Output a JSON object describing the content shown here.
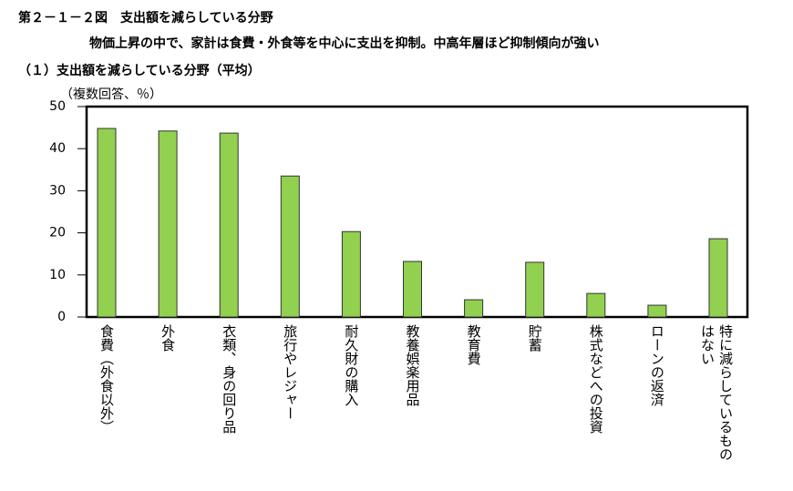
{
  "chart_data": {
    "type": "bar",
    "title": "第２－１－２図　支出額を減らしている分野",
    "subtitle": "物価上昇の中で、家計は食費・外食等を中心に支出を抑制。中高年層ほど抑制傾向が強い",
    "panel_title": "（１）支出額を減らしている分野（平均）",
    "y_label": "（複数回答、％）",
    "categories": [
      "食費（外食以外）",
      "外食",
      "衣類、身の回り品",
      "旅行やレジャー",
      "耐久財の購入",
      "教養娯楽用品",
      "教育費",
      "貯蓄",
      "株式などへの投資",
      "ローンの返済",
      "特に減らしているものはない"
    ],
    "values": [
      44.8,
      44.2,
      43.7,
      33.5,
      20.3,
      13.2,
      4.1,
      13.0,
      5.6,
      2.8,
      18.6
    ],
    "color": "#92d050",
    "ylim": [
      0,
      50
    ],
    "yticks": [
      0,
      10,
      20,
      30,
      40,
      50
    ],
    "grid": false
  }
}
